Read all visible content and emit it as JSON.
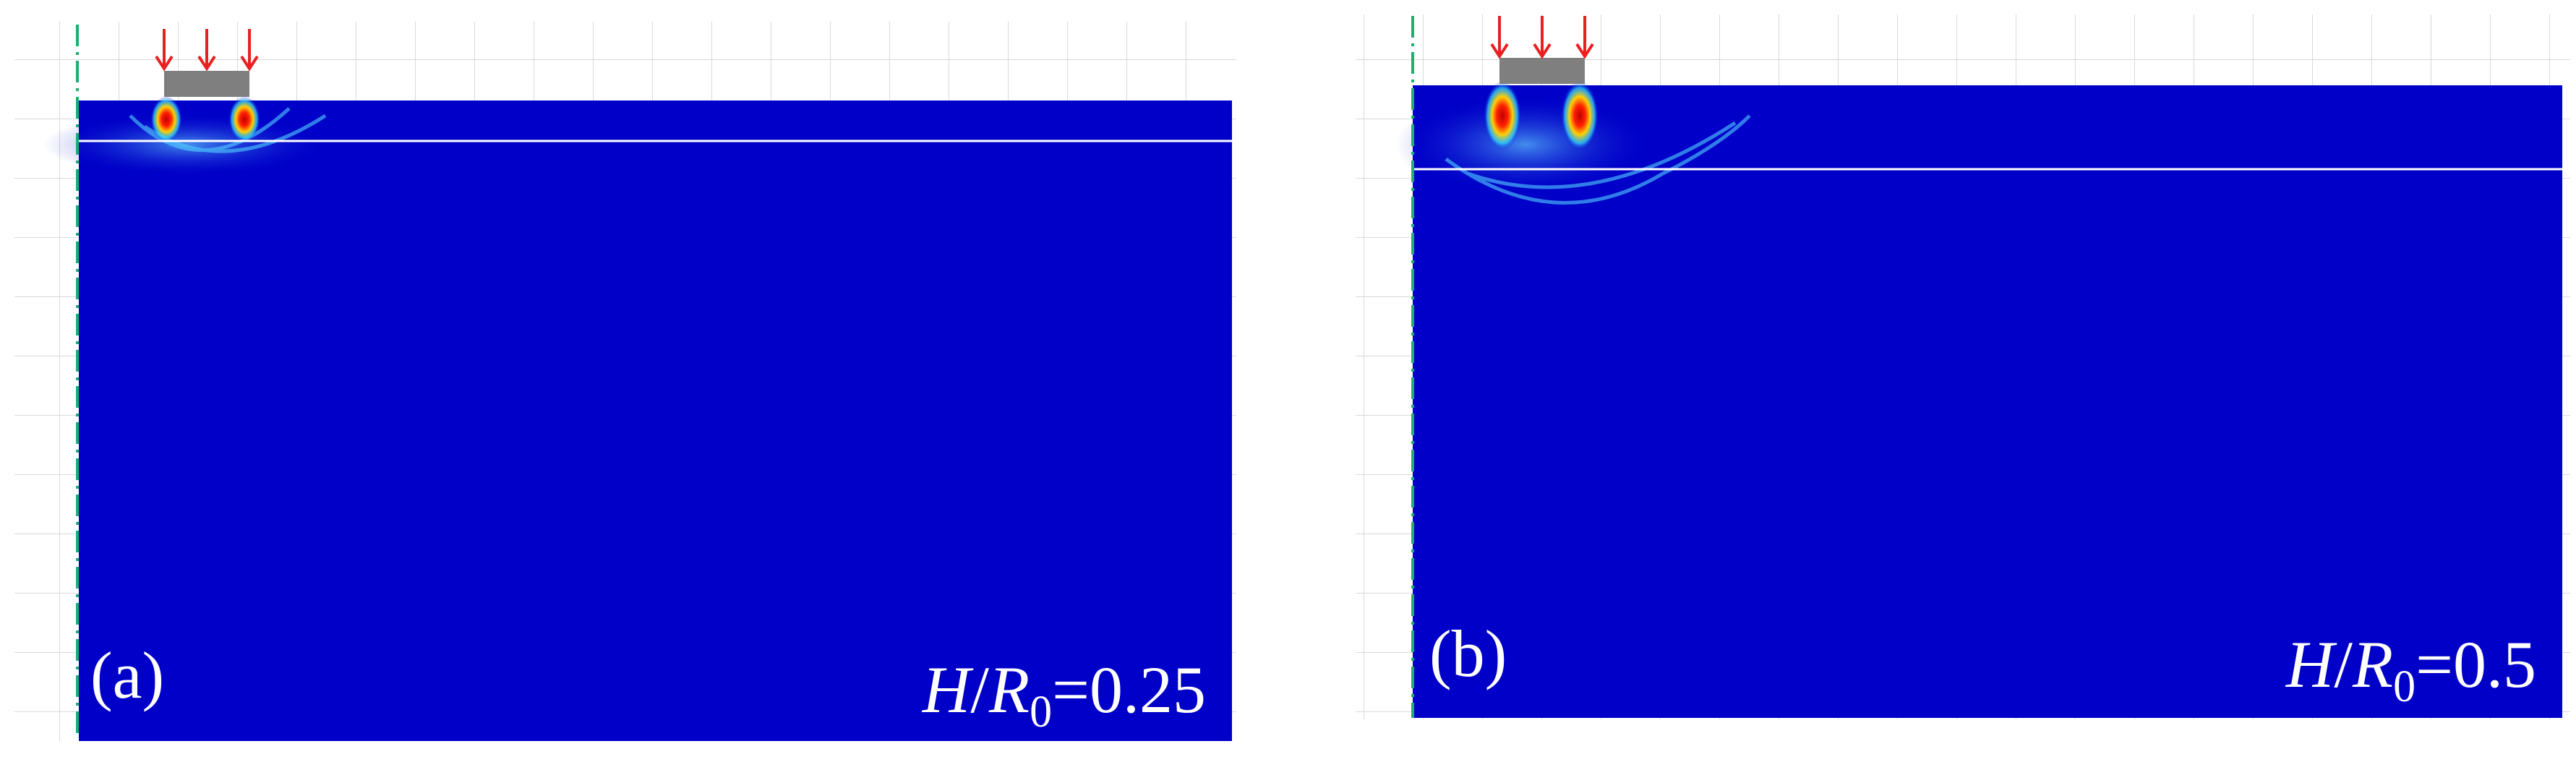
{
  "panels": [
    {
      "label": "(a)",
      "ratio": {
        "numerator": "H",
        "slash": "/",
        "denominator": "R",
        "subscript": "0",
        "value": "=0.25"
      }
    },
    {
      "label": "(b)",
      "ratio": {
        "numerator": "H",
        "slash": "/",
        "denominator": "R",
        "subscript": "0",
        "value": "=0.5"
      }
    }
  ]
}
